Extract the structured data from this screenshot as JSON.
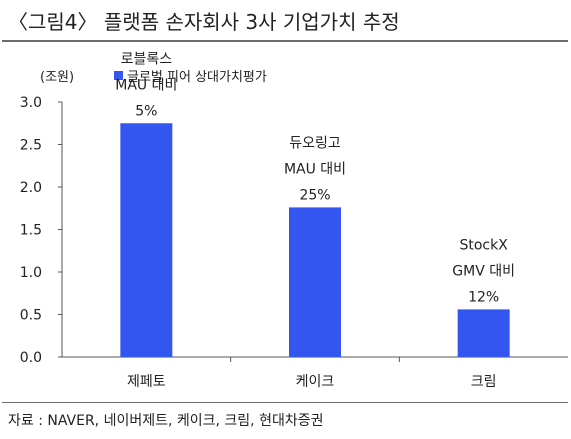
{
  "title": "〈그림4〉 플랫폼 손자회사 3사 기업가치 추정",
  "source": "자료 : NAVER, 네이버제트, 케이크, 크림, 현대차증권",
  "colors": {
    "bar": "#3355f0",
    "axis": "#555555",
    "text": "#222222"
  },
  "chart_data": {
    "type": "bar",
    "unit_label": "(조원)",
    "categories": [
      "제페토",
      "케이크",
      "크림"
    ],
    "series": [
      {
        "name": "글로벌 피어 상대가치평가",
        "values": [
          2.75,
          1.76,
          0.56
        ]
      }
    ],
    "annotations": [
      [
        "로블록스",
        "MAU 대비",
        "5%"
      ],
      [
        "듀오링고",
        "MAU 대비",
        "25%"
      ],
      [
        "StockX",
        "GMV 대비",
        "12%"
      ]
    ],
    "yticks": [
      "0.0",
      "0.5",
      "1.0",
      "1.5",
      "2.0",
      "2.5",
      "3.0"
    ],
    "ylim": [
      0,
      3.0
    ],
    "legend_position": "top",
    "grid": false
  }
}
